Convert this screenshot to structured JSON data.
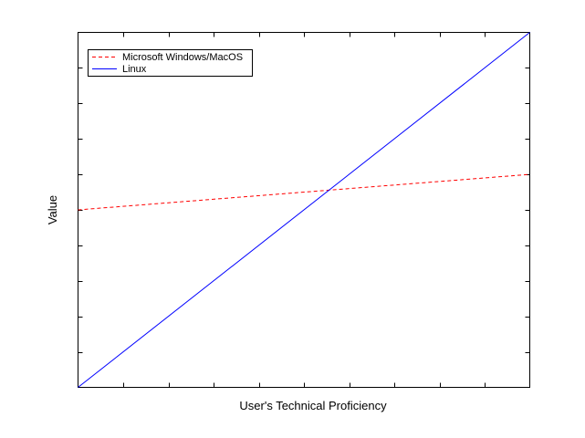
{
  "chart_data": {
    "type": "line",
    "title": "",
    "xlabel": "User's Technical Proficiency",
    "ylabel": "Value",
    "xlim": [
      0,
      10
    ],
    "ylim": [
      0,
      10
    ],
    "x_ticks": 10,
    "y_ticks": 10,
    "tick_labels_shown": false,
    "grid": false,
    "legend_position": "top-left",
    "series": [
      {
        "name": "Microsoft Windows/MacOS",
        "style": "dashed",
        "color": "#ff0000",
        "x": [
          0,
          10
        ],
        "y": [
          5,
          6
        ]
      },
      {
        "name": "Linux",
        "style": "solid",
        "color": "#0000ff",
        "x": [
          0,
          10
        ],
        "y": [
          0,
          10
        ]
      }
    ]
  }
}
